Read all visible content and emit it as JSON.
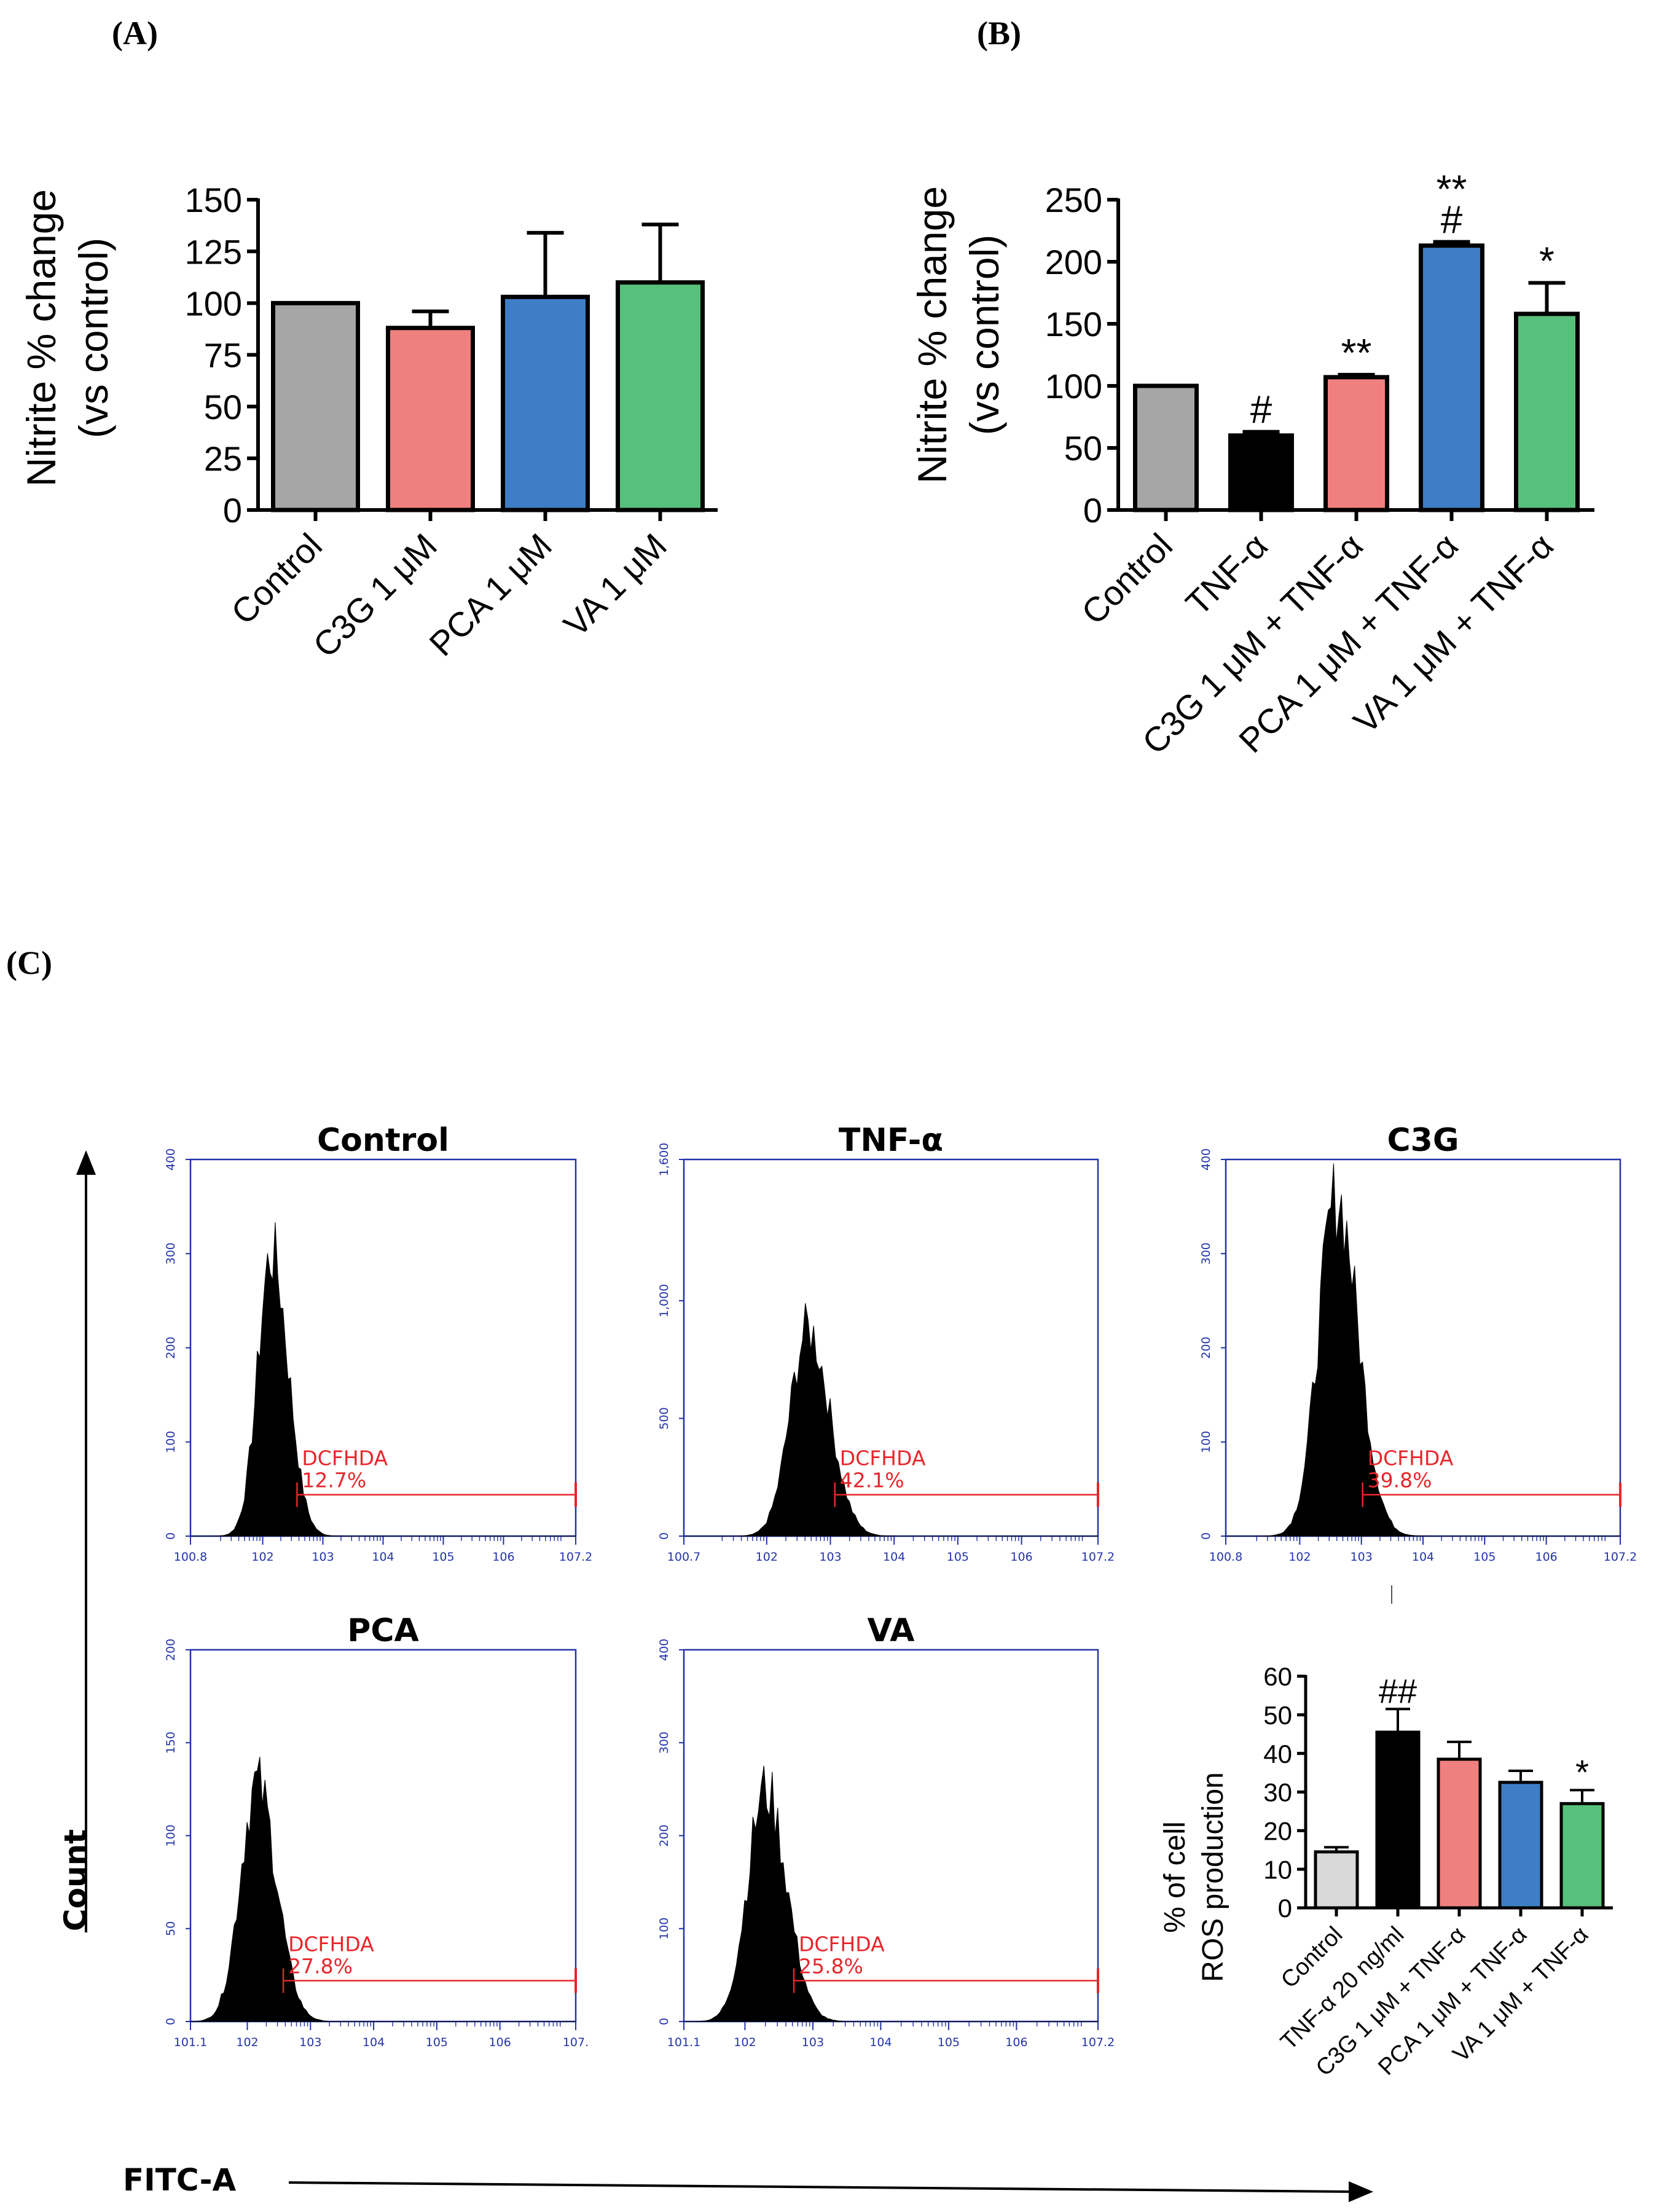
{
  "panels": {
    "a": "(A)",
    "b": "(B)",
    "c": "(C)"
  },
  "colors": {
    "control": "#a6a6a6",
    "tnf": "#000000",
    "c3g": "#f08080",
    "pca": "#3e7ec6",
    "va": "#57c07a",
    "control_light": "#d9d9d9",
    "flow_axis": "#2233aa",
    "gate": "#e8262b"
  },
  "chart_data": [
    {
      "type": "bar",
      "panel": "A",
      "ylabel": "Nitrite % change",
      "ylabel2": "(vs control)",
      "ylim": [
        0,
        150
      ],
      "yticks": [
        "0",
        "25",
        "50",
        "75",
        "100",
        "125",
        "150"
      ],
      "categories": [
        "Control",
        "C3G 1 μM",
        "PCA 1 μM",
        "VA 1 μM"
      ],
      "values": [
        100,
        88,
        103,
        110
      ],
      "errors": [
        0,
        8,
        31,
        28
      ],
      "colors": [
        "#a6a6a6",
        "#f08080",
        "#3e7ec6",
        "#57c07a"
      ],
      "annotations": [
        [],
        [],
        [],
        []
      ]
    },
    {
      "type": "bar",
      "panel": "B",
      "ylabel": "Nitrite % change",
      "ylabel2": "(vs control)",
      "ylim": [
        0,
        250
      ],
      "yticks": [
        "0",
        "50",
        "100",
        "150",
        "200",
        "250"
      ],
      "categories": [
        "Control",
        "TNF-α",
        "C3G 1 μM + TNF-α",
        "PCA 1 μM + TNF-α",
        "VA 1 μM + TNF-α"
      ],
      "values": [
        100,
        60,
        107,
        213,
        158
      ],
      "errors": [
        0,
        3,
        2,
        3,
        25
      ],
      "colors": [
        "#a6a6a6",
        "#000000",
        "#f08080",
        "#3e7ec6",
        "#57c07a"
      ],
      "annotations": [
        [],
        [
          "#"
        ],
        [
          "**"
        ],
        [
          "#",
          "**"
        ],
        [
          "*"
        ]
      ]
    },
    {
      "type": "bar",
      "panel": "C-inset",
      "ylabel": "% of cell",
      "ylabel2": "ROS production",
      "ylim": [
        0,
        60
      ],
      "yticks": [
        "0",
        "10",
        "20",
        "30",
        "40",
        "50",
        "60"
      ],
      "categories": [
        "Control",
        "TNF-α  20 ng/ml",
        "C3G 1 μM + TNF-α",
        "PCA 1 μM + TNF-α",
        "VA 1 μM + TNF-α"
      ],
      "values": [
        14.5,
        45.5,
        38.5,
        32.5,
        27
      ],
      "errors": [
        1.2,
        6,
        4.5,
        3,
        3.5
      ],
      "colors": [
        "#d9d9d9",
        "#000000",
        "#f08080",
        "#3e7ec6",
        "#57c07a"
      ],
      "annotations": [
        [],
        [
          "##"
        ],
        [],
        [],
        [
          "*"
        ]
      ]
    }
  ],
  "flow": {
    "y_axis_label": "Count",
    "x_axis_label": "FITC-A",
    "gate_name": "DCFHDA",
    "histograms": [
      {
        "title": "Control",
        "ymax": 400,
        "yticks": [
          "0",
          "100",
          "200",
          "300",
          "400"
        ],
        "peak_count": 300,
        "peak_decade": 2.15,
        "width": 0.22,
        "percent": "12.7%",
        "xmin_label": "0.8",
        "xmin": 0.8,
        "xticks": [
          "0.8",
          "2",
          "3",
          "4",
          "5",
          "6",
          "7.2"
        ]
      },
      {
        "title": "TNF-α",
        "ymax": 1600,
        "yticks": [
          "0",
          "500",
          "1,000",
          "1,600"
        ],
        "peak_count": 880,
        "peak_decade": 2.65,
        "width": 0.27,
        "percent": "42.1%",
        "xmin_label": "0.7",
        "xmin": 0.7,
        "xticks": [
          "0.7",
          "2",
          "3",
          "4",
          "5",
          "6",
          "7.2"
        ]
      },
      {
        "title": "C3G",
        "ymax": 400,
        "yticks": [
          "0",
          "100",
          "200",
          "300",
          "400"
        ],
        "peak_count": 360,
        "peak_decade": 2.6,
        "width": 0.28,
        "percent": "39.8%",
        "xmin_label": "0.8",
        "xmin": 0.8,
        "xticks": [
          "0.8",
          "2",
          "3",
          "4",
          "5",
          "6",
          "7.2"
        ]
      },
      {
        "title": "PCA",
        "ymax": 200,
        "yticks": [
          "0",
          "50",
          "100",
          "150",
          "200"
        ],
        "peak_count": 128,
        "peak_decade": 2.15,
        "width": 0.25,
        "percent": "27.8%",
        "xmin_label": "1.1",
        "xmin": 1.1,
        "xticks": [
          "1.1",
          "2",
          "3",
          "4",
          "5",
          "6",
          "7."
        ]
      },
      {
        "title": "VA",
        "ymax": 400,
        "yticks": [
          "0",
          "100",
          "200",
          "300",
          "400"
        ],
        "peak_count": 250,
        "peak_decade": 2.3,
        "width": 0.25,
        "percent": "25.8%",
        "xmin_label": "1.1",
        "xmin": 1.1,
        "xticks": [
          "1.1",
          "2",
          "3",
          "4",
          "5",
          "6",
          "7.2"
        ]
      }
    ]
  }
}
